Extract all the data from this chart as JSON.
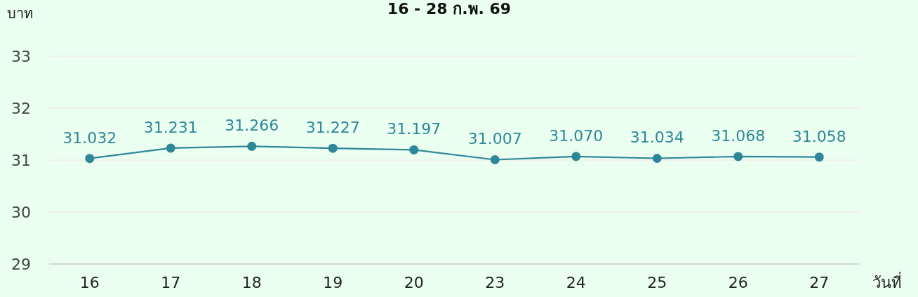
{
  "chart_data": {
    "type": "line",
    "title": "16 - 28 ก.พ. 69",
    "ylabel": "บาท",
    "xlabel": "วันที่",
    "categories": [
      "16",
      "17",
      "18",
      "19",
      "20",
      "23",
      "24",
      "25",
      "26",
      "27"
    ],
    "series": [
      {
        "color": "#2e8799",
        "values": [
          31.032,
          31.231,
          31.266,
          31.227,
          31.197,
          31.007,
          31.07,
          31.034,
          31.068,
          31.058
        ],
        "value_labels": [
          "31.032",
          "31.231",
          "31.266",
          "31.227",
          "31.197",
          "31.007",
          "31.070",
          "31.034",
          "31.068",
          "31.058"
        ]
      }
    ],
    "ylim": [
      29,
      33
    ],
    "yticks": [
      29,
      30,
      31,
      32,
      33
    ],
    "grid": "y",
    "marker": "circle",
    "line_style": "solid"
  }
}
